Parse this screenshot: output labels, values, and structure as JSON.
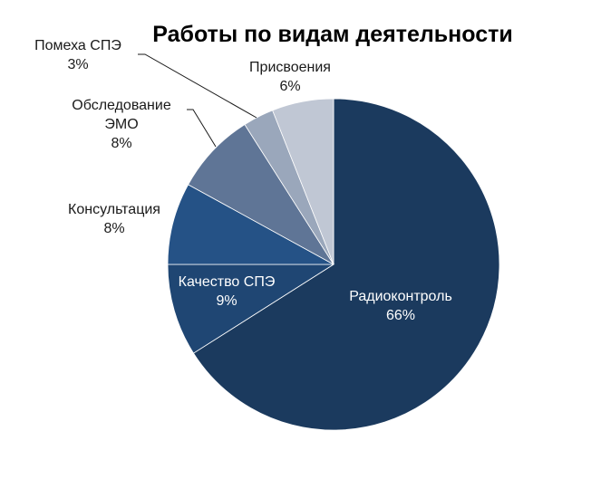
{
  "chart_data": {
    "type": "pie",
    "title": "Работы по видам деятельности",
    "slices": [
      {
        "name": "Радиоконтроль",
        "label_lines": [
          "Радиоконтроль"
        ],
        "percent_label": "66%",
        "value": 66,
        "color": "#1b3a5e"
      },
      {
        "name": "Качество СПЭ",
        "label_lines": [
          "Качество СПЭ"
        ],
        "percent_label": "9%",
        "value": 9,
        "color": "#1f4673"
      },
      {
        "name": "Консультация",
        "label_lines": [
          "Консультация"
        ],
        "percent_label": "8%",
        "value": 8,
        "color": "#255286"
      },
      {
        "name": "Обследование ЭМО",
        "label_lines": [
          "Обследование",
          "ЭМО"
        ],
        "percent_label": "8%",
        "value": 8,
        "color": "#5f7596"
      },
      {
        "name": "Помеха СПЭ",
        "label_lines": [
          "Помеха СПЭ"
        ],
        "percent_label": "3%",
        "value": 3,
        "color": "#9aa7bb"
      },
      {
        "name": "Присвоения",
        "label_lines": [
          "Присвоения"
        ],
        "percent_label": "6%",
        "value": 6,
        "color": "#c0c7d4"
      }
    ]
  }
}
